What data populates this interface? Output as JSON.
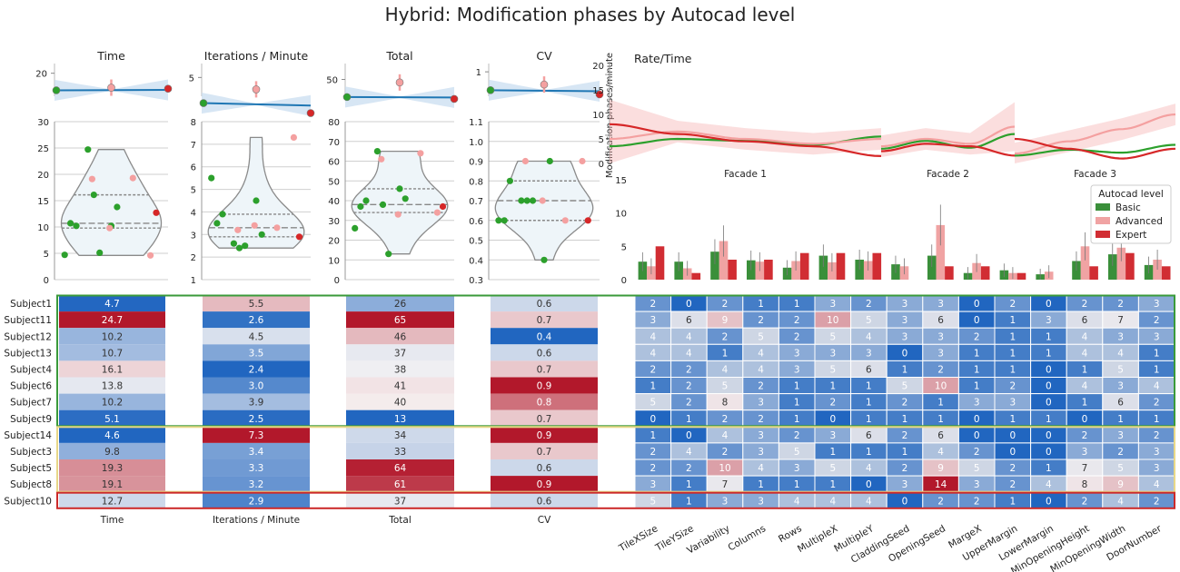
{
  "title": "Hybrid: Modification phases by Autocad level",
  "colors": {
    "basic": "#2ca02c",
    "advanced": "#f4a0a0",
    "expert": "#d62728",
    "line": "#1f77b4",
    "band": "#c6dbef",
    "neg": "#2166c0",
    "pos": "#b2182b"
  },
  "subjects": [
    "Subject1",
    "Subject11",
    "Subject12",
    "Subject13",
    "Subject4",
    "Subject6",
    "Subject7",
    "Subject9",
    "Subject14",
    "Subject3",
    "Subject5",
    "Subject8",
    "Subject10"
  ],
  "subject_group": [
    "Basic",
    "Basic",
    "Basic",
    "Basic",
    "Basic",
    "Basic",
    "Basic",
    "Basic",
    "Advanced",
    "Advanced",
    "Advanced",
    "Advanced",
    "Expert"
  ],
  "chart_data": [
    {
      "type": "violin",
      "title": "Time",
      "ylim": [
        0,
        30
      ],
      "yticks": [
        0,
        5,
        10,
        15,
        20,
        25,
        30
      ],
      "top_ylim": [
        10,
        22
      ],
      "top_yticks": [
        20
      ],
      "xlabel": "Time",
      "values": [
        4.7,
        24.7,
        10.2,
        10.7,
        16.1,
        13.8,
        10.2,
        5.1,
        4.6,
        9.8,
        19.3,
        19.1,
        12.7
      ]
    },
    {
      "type": "violin",
      "title": "Iterations / Minute",
      "ylim": [
        1,
        8
      ],
      "yticks": [
        1,
        2,
        3,
        4,
        5,
        6,
        7,
        8
      ],
      "top_ylim": [
        4,
        5.5
      ],
      "top_yticks": [
        5
      ],
      "xlabel": "Iterations / Minute",
      "values": [
        5.5,
        2.6,
        4.5,
        3.5,
        2.4,
        3.0,
        3.9,
        2.5,
        7.3,
        3.4,
        3.3,
        3.2,
        2.9
      ]
    },
    {
      "type": "violin",
      "title": "Total",
      "ylim": [
        0,
        80
      ],
      "yticks": [
        0,
        10,
        20,
        30,
        40,
        50,
        60,
        70,
        80
      ],
      "top_ylim": [
        40,
        57
      ],
      "top_yticks": [
        50
      ],
      "xlabel": "Total",
      "values": [
        26.0,
        65.0,
        46.0,
        37.0,
        38.0,
        41.0,
        40.0,
        13.0,
        34.0,
        33.0,
        64.0,
        61.0,
        37.0
      ]
    },
    {
      "type": "violin",
      "title": "CV",
      "ylim": [
        0.3,
        1.1
      ],
      "yticks": [
        0.3,
        0.4,
        0.5,
        0.6,
        0.7,
        0.8,
        0.9,
        1.0,
        1.1
      ],
      "top_ylim": [
        0.6,
        1.05
      ],
      "top_yticks": [
        1
      ],
      "xlabel": "CV",
      "values": [
        0.6,
        0.7,
        0.4,
        0.6,
        0.7,
        0.9,
        0.8,
        0.7,
        0.9,
        0.7,
        0.6,
        0.9,
        0.6
      ]
    },
    {
      "type": "line",
      "title": "Rate/Time",
      "ylabel": "Modification phases/minute",
      "ylim": [
        0,
        20
      ],
      "yticks": [
        0,
        5,
        10,
        15,
        20
      ],
      "facets": [
        "Facade 1",
        "Facade 2",
        "Facade 3"
      ],
      "series": [
        {
          "name": "Basic"
        },
        {
          "name": "Advanced"
        },
        {
          "name": "Expert"
        }
      ]
    },
    {
      "type": "bar",
      "ylim": [
        0,
        15
      ],
      "yticks": [
        0,
        5,
        10,
        15
      ],
      "legend_title": "Autocad level",
      "legend_position": "right",
      "categories": [
        "TileXSize",
        "TileYSize",
        "Variability",
        "Columns",
        "Rows",
        "MultipleX",
        "MultipleY",
        "CladdingSeed",
        "OpeningSeed",
        "MargeX",
        "UpperMargin",
        "LowerMargin",
        "MinOpeningHeight",
        "MinOpeningWidth",
        "DoorNumber"
      ],
      "series": [
        {
          "name": "Basic",
          "values": [
            2.7,
            2.7,
            4.2,
            2.9,
            1.8,
            3.6,
            3.0,
            2.3,
            3.6,
            1.0,
            1.4,
            0.8,
            2.8,
            3.8,
            2.2
          ]
        },
        {
          "name": "Advanced",
          "values": [
            2.0,
            1.7,
            5.8,
            2.7,
            2.8,
            2.6,
            2.8,
            2.0,
            8.2,
            2.5,
            1.0,
            1.2,
            5.0,
            4.8,
            3.0
          ]
        },
        {
          "name": "Expert",
          "values": [
            5.0,
            1.0,
            3.0,
            3.0,
            4.0,
            4.0,
            4.0,
            0.0,
            2.0,
            2.0,
            1.0,
            0.0,
            2.0,
            4.0,
            2.0
          ]
        }
      ]
    },
    {
      "type": "heatmap",
      "columns": [
        "TileXSize",
        "TileYSize",
        "Variability",
        "Columns",
        "Rows",
        "MultipleX",
        "MultipleY",
        "CladdingSeed",
        "OpeningSeed",
        "MargeX",
        "UpperMargin",
        "LowerMargin",
        "MinOpeningHeight",
        "MinOpeningWidth",
        "DoorNumber"
      ],
      "rows": [
        "Subject1",
        "Subject11",
        "Subject12",
        "Subject13",
        "Subject4",
        "Subject6",
        "Subject7",
        "Subject9",
        "Subject14",
        "Subject3",
        "Subject5",
        "Subject8",
        "Subject10"
      ],
      "values": [
        [
          2,
          0,
          2,
          1,
          1,
          3,
          2,
          3,
          3,
          0,
          2,
          0,
          2,
          2,
          3
        ],
        [
          3,
          6,
          9,
          2,
          2,
          10,
          5,
          3,
          6,
          0,
          1,
          3,
          6,
          7,
          2
        ],
        [
          4,
          4,
          2,
          5,
          2,
          5,
          4,
          3,
          3,
          2,
          1,
          1,
          4,
          3,
          3
        ],
        [
          4,
          4,
          1,
          4,
          3,
          3,
          3,
          0,
          3,
          1,
          1,
          1,
          4,
          4,
          1
        ],
        [
          2,
          2,
          4,
          4,
          3,
          5,
          6,
          1,
          2,
          1,
          1,
          0,
          1,
          5,
          1
        ],
        [
          1,
          2,
          5,
          2,
          1,
          1,
          1,
          5,
          10,
          1,
          2,
          0,
          4,
          3,
          4
        ],
        [
          5,
          2,
          8,
          3,
          1,
          2,
          1,
          2,
          1,
          3,
          3,
          0,
          1,
          6,
          2
        ],
        [
          0,
          1,
          2,
          2,
          1,
          0,
          1,
          1,
          1,
          0,
          1,
          1,
          0,
          1,
          1
        ],
        [
          1,
          0,
          4,
          3,
          2,
          3,
          6,
          2,
          6,
          0,
          0,
          0,
          2,
          3,
          2
        ],
        [
          2,
          4,
          2,
          3,
          5,
          1,
          1,
          1,
          4,
          2,
          0,
          0,
          3,
          2,
          3
        ],
        [
          2,
          2,
          10,
          4,
          3,
          5,
          4,
          2,
          9,
          5,
          2,
          1,
          7,
          5,
          3
        ],
        [
          3,
          1,
          7,
          1,
          1,
          1,
          0,
          3,
          14,
          3,
          2,
          4,
          8,
          9,
          4
        ],
        [
          5,
          1,
          3,
          3,
          4,
          4,
          4,
          0,
          2,
          2,
          1,
          0,
          2,
          4,
          2
        ]
      ]
    }
  ]
}
